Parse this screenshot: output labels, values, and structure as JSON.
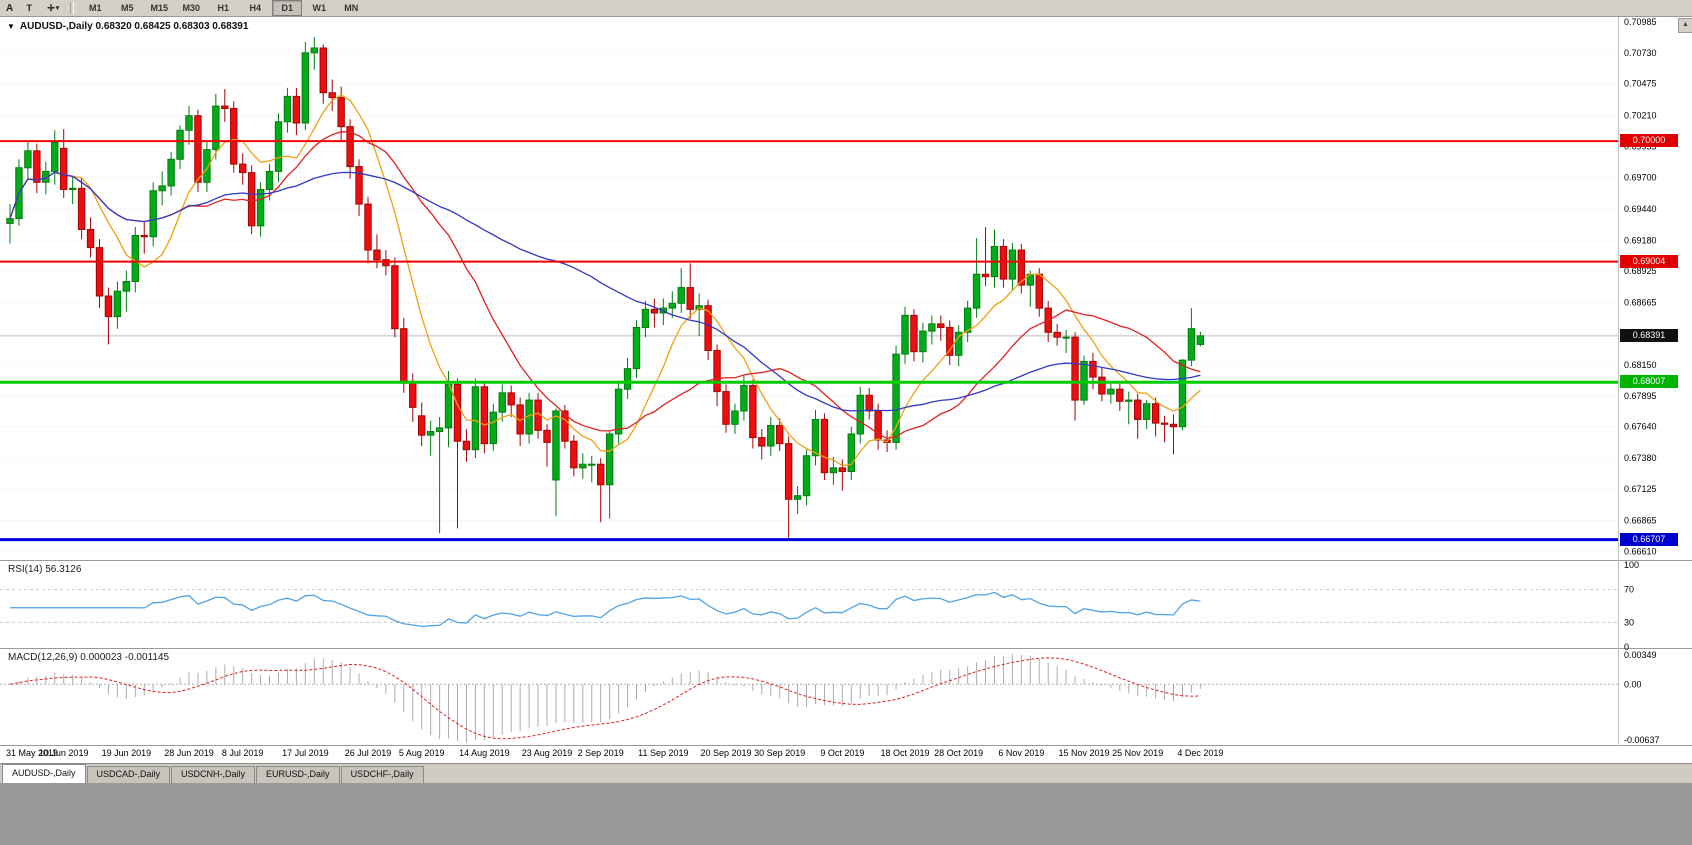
{
  "toolbar": {
    "left_text": "A",
    "text_tool_label": "T",
    "cursor_icon_glyph": "✛",
    "caret_glyph": "▾",
    "timeframes": [
      "M1",
      "M5",
      "M15",
      "M30",
      "H1",
      "H4",
      "D1",
      "W1",
      "MN"
    ],
    "active_timeframe": "D1"
  },
  "chart_header": {
    "symbol_marker": "▼",
    "symbol": "AUDUSD-,Daily",
    "ohlc": "0.68320 0.68425 0.68303 0.68391"
  },
  "price_axis": {
    "labels": [
      "0.70985",
      "0.70730",
      "0.70475",
      "0.70210",
      "0.69955",
      "0.69700",
      "0.69440",
      "0.69180",
      "0.68925",
      "0.68665",
      "0.68405",
      "0.68150",
      "0.67895",
      "0.67640",
      "0.67380",
      "0.67125",
      "0.66865",
      "0.66610"
    ]
  },
  "hlines": [
    {
      "price": 0.7,
      "label": "0.70000",
      "color": "#f20000",
      "tag": "#e00000",
      "width": 2
    },
    {
      "price": 0.69004,
      "label": "0.69004",
      "color": "#f20000",
      "tag": "#e00000",
      "width": 2
    },
    {
      "price": 0.68007,
      "label": "0.68007",
      "color": "#00cc00",
      "tag": "#00b400",
      "width": 3
    },
    {
      "price": 0.66707,
      "label": "0.66707",
      "color": "#0000dd",
      "tag": "#0000cc",
      "width": 3
    }
  ],
  "current_price": {
    "value": 0.68391,
    "label": "0.68391"
  },
  "scroll_up_glyph": "▲",
  "chart_data": {
    "type": "candlestick",
    "symbol": "AUDUSD-",
    "timeframe": "Daily",
    "up_color": "#00ad19",
    "up_border": "#017d10",
    "down_color": "#ec0f0f",
    "down_border": "#a30404",
    "ma_lines": [
      {
        "period": 8,
        "color": "#f0a011"
      },
      {
        "period": 20,
        "color": "#e02020"
      },
      {
        "period": 50,
        "color": "#3038c8"
      }
    ],
    "x_labels": [
      {
        "i": 0,
        "t": "31 May 2019"
      },
      {
        "i": 6,
        "t": "10 Jun 2019"
      },
      {
        "i": 13,
        "t": "19 Jun 2019"
      },
      {
        "i": 20,
        "t": "28 Jun 2019"
      },
      {
        "i": 26,
        "t": "8 Jul 2019"
      },
      {
        "i": 33,
        "t": "17 Jul 2019"
      },
      {
        "i": 40,
        "t": "26 Jul 2019"
      },
      {
        "i": 46,
        "t": "5 Aug 2019"
      },
      {
        "i": 53,
        "t": "14 Aug 2019"
      },
      {
        "i": 60,
        "t": "23 Aug 2019"
      },
      {
        "i": 66,
        "t": "2 Sep 2019"
      },
      {
        "i": 73,
        "t": "11 Sep 2019"
      },
      {
        "i": 80,
        "t": "20 Sep 2019"
      },
      {
        "i": 86,
        "t": "30 Sep 2019"
      },
      {
        "i": 93,
        "t": "9 Oct 2019"
      },
      {
        "i": 100,
        "t": "18 Oct 2019"
      },
      {
        "i": 106,
        "t": "28 Oct 2019"
      },
      {
        "i": 113,
        "t": "6 Nov 2019"
      },
      {
        "i": 120,
        "t": "15 Nov 2019"
      },
      {
        "i": 126,
        "t": "25 Nov 2019"
      },
      {
        "i": 133,
        "t": "4 Dec 2019"
      }
    ],
    "candles": [
      [
        0.6932,
        0.6948,
        0.69155,
        0.6936
      ],
      [
        0.6936,
        0.6985,
        0.693,
        0.6978
      ],
      [
        0.6978,
        0.7,
        0.6969,
        0.6992
      ],
      [
        0.6992,
        0.6998,
        0.6957,
        0.6966
      ],
      [
        0.6966,
        0.6983,
        0.6956,
        0.6975
      ],
      [
        0.6975,
        0.7009,
        0.6964,
        0.6999
      ],
      [
        0.6994,
        0.701,
        0.6953,
        0.696
      ],
      [
        0.696,
        0.697,
        0.6948,
        0.6961
      ],
      [
        0.6961,
        0.6969,
        0.6919,
        0.6927
      ],
      [
        0.6927,
        0.6937,
        0.6904,
        0.6912
      ],
      [
        0.6912,
        0.6919,
        0.6862,
        0.6872
      ],
      [
        0.6872,
        0.6879,
        0.6832,
        0.6855
      ],
      [
        0.6855,
        0.6884,
        0.6845,
        0.6876
      ],
      [
        0.6876,
        0.6893,
        0.6859,
        0.6884
      ],
      [
        0.6884,
        0.6929,
        0.6875,
        0.6922
      ],
      [
        0.6922,
        0.6933,
        0.6907,
        0.6921
      ],
      [
        0.6921,
        0.6966,
        0.6913,
        0.6959
      ],
      [
        0.6959,
        0.6975,
        0.6947,
        0.6963
      ],
      [
        0.6963,
        0.6991,
        0.6955,
        0.6985
      ],
      [
        0.6985,
        0.7013,
        0.6977,
        0.7009
      ],
      [
        0.7009,
        0.7029,
        0.6997,
        0.7021
      ],
      [
        0.7021,
        0.7026,
        0.6958,
        0.6966
      ],
      [
        0.6966,
        0.6999,
        0.6958,
        0.6993
      ],
      [
        0.6993,
        0.7039,
        0.6985,
        0.7029
      ],
      [
        0.7029,
        0.7043,
        0.7016,
        0.7027
      ],
      [
        0.7027,
        0.7033,
        0.6974,
        0.6981
      ],
      [
        0.6981,
        0.699,
        0.6964,
        0.6974
      ],
      [
        0.6974,
        0.698,
        0.6923,
        0.693
      ],
      [
        0.693,
        0.6966,
        0.6921,
        0.696
      ],
      [
        0.696,
        0.6981,
        0.6951,
        0.6975
      ],
      [
        0.6975,
        0.7023,
        0.6966,
        0.7016
      ],
      [
        0.7016,
        0.7044,
        0.7007,
        0.7037
      ],
      [
        0.7037,
        0.7044,
        0.7005,
        0.7015
      ],
      [
        0.7015,
        0.7082,
        0.7009,
        0.7073
      ],
      [
        0.7073,
        0.7086,
        0.7059,
        0.7077
      ],
      [
        0.7077,
        0.708,
        0.7031,
        0.704
      ],
      [
        0.704,
        0.7051,
        0.7025,
        0.7036
      ],
      [
        0.7036,
        0.7045,
        0.7,
        0.7012
      ],
      [
        0.7012,
        0.7018,
        0.6969,
        0.6979
      ],
      [
        0.6979,
        0.6985,
        0.6938,
        0.6948
      ],
      [
        0.6948,
        0.6954,
        0.6899,
        0.691
      ],
      [
        0.691,
        0.6923,
        0.6895,
        0.6902
      ],
      [
        0.6902,
        0.691,
        0.6889,
        0.6897
      ],
      [
        0.6897,
        0.6904,
        0.6838,
        0.6845
      ],
      [
        0.6845,
        0.6854,
        0.6792,
        0.68
      ],
      [
        0.68,
        0.6808,
        0.6768,
        0.678
      ],
      [
        0.6773,
        0.6784,
        0.6748,
        0.6757
      ],
      [
        0.6757,
        0.6769,
        0.674,
        0.676
      ],
      [
        0.676,
        0.6772,
        0.6676,
        0.6763
      ],
      [
        0.6763,
        0.681,
        0.6747,
        0.6799
      ],
      [
        0.6799,
        0.6804,
        0.668,
        0.6752
      ],
      [
        0.6752,
        0.6762,
        0.6735,
        0.6745
      ],
      [
        0.6745,
        0.6804,
        0.6738,
        0.6797
      ],
      [
        0.6797,
        0.6801,
        0.6742,
        0.675
      ],
      [
        0.675,
        0.6783,
        0.6744,
        0.6776
      ],
      [
        0.6776,
        0.6799,
        0.6768,
        0.6792
      ],
      [
        0.6792,
        0.6798,
        0.6772,
        0.6782
      ],
      [
        0.6782,
        0.6788,
        0.6748,
        0.6758
      ],
      [
        0.6758,
        0.6792,
        0.675,
        0.6786
      ],
      [
        0.6786,
        0.6792,
        0.6754,
        0.6761
      ],
      [
        0.6761,
        0.6766,
        0.6731,
        0.6751
      ],
      [
        0.672,
        0.6779,
        0.669,
        0.6777
      ],
      [
        0.6777,
        0.6782,
        0.6746,
        0.6752
      ],
      [
        0.6752,
        0.6757,
        0.6723,
        0.673
      ],
      [
        0.673,
        0.6742,
        0.6721,
        0.6733
      ],
      [
        0.6733,
        0.674,
        0.6718,
        0.6733
      ],
      [
        0.6733,
        0.6738,
        0.6685,
        0.6716
      ],
      [
        0.6716,
        0.676,
        0.6688,
        0.6758
      ],
      [
        0.6758,
        0.68,
        0.675,
        0.6795
      ],
      [
        0.6795,
        0.6821,
        0.6787,
        0.6812
      ],
      [
        0.6812,
        0.6852,
        0.6804,
        0.6846
      ],
      [
        0.6846,
        0.6868,
        0.6838,
        0.6861
      ],
      [
        0.6861,
        0.687,
        0.6846,
        0.6858
      ],
      [
        0.6858,
        0.687,
        0.6848,
        0.6862
      ],
      [
        0.6862,
        0.6876,
        0.6854,
        0.6866
      ],
      [
        0.6866,
        0.6895,
        0.6858,
        0.6879
      ],
      [
        0.6879,
        0.6899,
        0.6853,
        0.6861
      ],
      [
        0.6861,
        0.6874,
        0.6839,
        0.6864
      ],
      [
        0.6864,
        0.6869,
        0.6819,
        0.6827
      ],
      [
        0.6827,
        0.6832,
        0.6781,
        0.6793
      ],
      [
        0.6793,
        0.6799,
        0.6759,
        0.6766
      ],
      [
        0.6766,
        0.6783,
        0.6758,
        0.6777
      ],
      [
        0.6777,
        0.6806,
        0.6769,
        0.6798
      ],
      [
        0.6798,
        0.6803,
        0.6746,
        0.6755
      ],
      [
        0.6755,
        0.6762,
        0.6737,
        0.6748
      ],
      [
        0.6748,
        0.6772,
        0.674,
        0.6765
      ],
      [
        0.6765,
        0.6771,
        0.6744,
        0.675
      ],
      [
        0.675,
        0.6756,
        0.6671,
        0.6704
      ],
      [
        0.6704,
        0.6715,
        0.6692,
        0.6707
      ],
      [
        0.6707,
        0.6745,
        0.6699,
        0.674
      ],
      [
        0.674,
        0.6778,
        0.6732,
        0.677
      ],
      [
        0.677,
        0.6775,
        0.672,
        0.6726
      ],
      [
        0.6726,
        0.6739,
        0.6716,
        0.673
      ],
      [
        0.673,
        0.6737,
        0.6711,
        0.6727
      ],
      [
        0.6727,
        0.6764,
        0.672,
        0.6758
      ],
      [
        0.6758,
        0.6797,
        0.675,
        0.679
      ],
      [
        0.679,
        0.6796,
        0.677,
        0.6777
      ],
      [
        0.6777,
        0.6783,
        0.6745,
        0.6753
      ],
      [
        0.6753,
        0.6761,
        0.6743,
        0.6751
      ],
      [
        0.6751,
        0.6831,
        0.6745,
        0.6824
      ],
      [
        0.6824,
        0.6863,
        0.6816,
        0.6856
      ],
      [
        0.6856,
        0.6861,
        0.6818,
        0.6826
      ],
      [
        0.6826,
        0.685,
        0.6817,
        0.6843
      ],
      [
        0.6843,
        0.6856,
        0.6832,
        0.6849
      ],
      [
        0.6849,
        0.6856,
        0.6835,
        0.6846
      ],
      [
        0.6846,
        0.6852,
        0.6815,
        0.6823
      ],
      [
        0.6823,
        0.6848,
        0.6814,
        0.6842
      ],
      [
        0.6842,
        0.6868,
        0.6834,
        0.6862
      ],
      [
        0.6862,
        0.692,
        0.6854,
        0.689
      ],
      [
        0.689,
        0.6929,
        0.688,
        0.6888
      ],
      [
        0.6888,
        0.6927,
        0.6879,
        0.6913
      ],
      [
        0.6913,
        0.6919,
        0.6879,
        0.6886
      ],
      [
        0.6886,
        0.6916,
        0.6877,
        0.691
      ],
      [
        0.691,
        0.6915,
        0.6874,
        0.6881
      ],
      [
        0.6881,
        0.6893,
        0.6863,
        0.689
      ],
      [
        0.689,
        0.6895,
        0.6855,
        0.6862
      ],
      [
        0.6862,
        0.6868,
        0.6834,
        0.6842
      ],
      [
        0.6842,
        0.6849,
        0.6831,
        0.6838
      ],
      [
        0.6838,
        0.6844,
        0.6825,
        0.6838
      ],
      [
        0.6838,
        0.6842,
        0.6769,
        0.6786
      ],
      [
        0.6786,
        0.6823,
        0.6782,
        0.6818
      ],
      [
        0.6818,
        0.6825,
        0.6795,
        0.6805
      ],
      [
        0.6805,
        0.6813,
        0.6785,
        0.6791
      ],
      [
        0.6791,
        0.68,
        0.6783,
        0.6795
      ],
      [
        0.6795,
        0.6801,
        0.6777,
        0.6785
      ],
      [
        0.6785,
        0.6793,
        0.6766,
        0.6786
      ],
      [
        0.6786,
        0.6791,
        0.6754,
        0.677
      ],
      [
        0.677,
        0.6786,
        0.6762,
        0.6783
      ],
      [
        0.6783,
        0.6788,
        0.6756,
        0.6767
      ],
      [
        0.6767,
        0.6773,
        0.6751,
        0.6766
      ],
      [
        0.6766,
        0.6774,
        0.6741,
        0.6764
      ],
      [
        0.6764,
        0.682,
        0.6761,
        0.6819
      ],
      [
        0.6819,
        0.6862,
        0.6814,
        0.6845
      ],
      [
        0.6832,
        0.68425,
        0.68303,
        0.68391
      ]
    ]
  },
  "rsi_panel": {
    "label": "RSI(14)",
    "value": "56.3126",
    "axis_labels": [
      "100",
      "70",
      "30",
      "0"
    ],
    "upper_level": 70,
    "lower_level": 30,
    "line_color": "#4fa4e8"
  },
  "macd_panel": {
    "label": "MACD(12,26,9)",
    "values": "0.000023 -0.001145",
    "axis_top_label": "0.00349",
    "axis_zero_label": "0.00",
    "axis_bottom_label": "-0.00637",
    "hist_color": "#ababab",
    "signal_color": "#e02020"
  },
  "tabs": [
    {
      "label": "AUDUSD-,Daily",
      "active": true
    },
    {
      "label": "USDCAD-,Daily",
      "active": false
    },
    {
      "label": "USDCNH-,Daily",
      "active": false
    },
    {
      "label": "EURUSD-,Daily",
      "active": false
    },
    {
      "label": "USDCHF-,Daily",
      "active": false
    }
  ]
}
